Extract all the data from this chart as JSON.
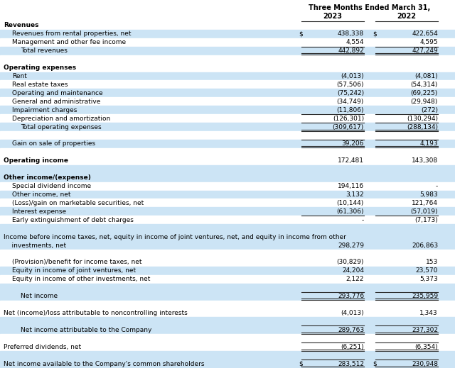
{
  "title": "Three Months Ended March 31,",
  "col_2023": "2023",
  "col_2022": "2022",
  "light_blue": "#cce4f5",
  "white": "#ffffff",
  "dark_border": "#2c2c2c",
  "rows": [
    {
      "label": "Revenues",
      "val2023": "",
      "val2022": "",
      "indent": 0,
      "bold": true,
      "section_bg": "white",
      "dollar2023": false,
      "dollar2022": false
    },
    {
      "label": "Revenues from rental properties, net",
      "val2023": "438,338",
      "val2022": "422,654",
      "indent": 1,
      "bold": false,
      "section_bg": "light",
      "dollar2023": true,
      "dollar2022": true
    },
    {
      "label": "Management and other fee income",
      "val2023": "4,554",
      "val2022": "4,595",
      "indent": 1,
      "bold": false,
      "section_bg": "white",
      "dollar2023": false,
      "dollar2022": false
    },
    {
      "label": "Total revenues",
      "val2023": "442,892",
      "val2022": "427,249",
      "indent": 2,
      "bold": false,
      "section_bg": "light",
      "dollar2023": false,
      "dollar2022": false,
      "top_border": true,
      "double_border": true
    },
    {
      "label": "",
      "val2023": "",
      "val2022": "",
      "indent": 0,
      "bold": false,
      "section_bg": "white",
      "dollar2023": false,
      "dollar2022": false
    },
    {
      "label": "Operating expenses",
      "val2023": "",
      "val2022": "",
      "indent": 0,
      "bold": true,
      "section_bg": "white",
      "dollar2023": false,
      "dollar2022": false
    },
    {
      "label": "Rent",
      "val2023": "(4,013)",
      "val2022": "(4,081)",
      "indent": 1,
      "bold": false,
      "section_bg": "light",
      "dollar2023": false,
      "dollar2022": false
    },
    {
      "label": "Real estate taxes",
      "val2023": "(57,506)",
      "val2022": "(54,314)",
      "indent": 1,
      "bold": false,
      "section_bg": "white",
      "dollar2023": false,
      "dollar2022": false
    },
    {
      "label": "Operating and maintenance",
      "val2023": "(75,242)",
      "val2022": "(69,225)",
      "indent": 1,
      "bold": false,
      "section_bg": "light",
      "dollar2023": false,
      "dollar2022": false
    },
    {
      "label": "General and administrative",
      "val2023": "(34,749)",
      "val2022": "(29,948)",
      "indent": 1,
      "bold": false,
      "section_bg": "white",
      "dollar2023": false,
      "dollar2022": false
    },
    {
      "label": "Impairment charges",
      "val2023": "(11,806)",
      "val2022": "(272)",
      "indent": 1,
      "bold": false,
      "section_bg": "light",
      "dollar2023": false,
      "dollar2022": false
    },
    {
      "label": "Depreciation and amortization",
      "val2023": "(126,301)",
      "val2022": "(130,294)",
      "indent": 1,
      "bold": false,
      "section_bg": "white",
      "dollar2023": false,
      "dollar2022": false,
      "top_border": true
    },
    {
      "label": "Total operating expenses",
      "val2023": "(309,617)",
      "val2022": "(288,134)",
      "indent": 2,
      "bold": false,
      "section_bg": "light",
      "dollar2023": false,
      "dollar2022": false,
      "top_border": true,
      "double_border": true
    },
    {
      "label": "",
      "val2023": "",
      "val2022": "",
      "indent": 0,
      "bold": false,
      "section_bg": "white",
      "dollar2023": false,
      "dollar2022": false
    },
    {
      "label": "Gain on sale of properties",
      "val2023": "39,206",
      "val2022": "4,193",
      "indent": 1,
      "bold": false,
      "section_bg": "light",
      "dollar2023": false,
      "dollar2022": false,
      "top_border": true,
      "double_border": true
    },
    {
      "label": "",
      "val2023": "",
      "val2022": "",
      "indent": 0,
      "bold": false,
      "section_bg": "white",
      "dollar2023": false,
      "dollar2022": false
    },
    {
      "label": "Operating income",
      "val2023": "172,481",
      "val2022": "143,308",
      "indent": 0,
      "bold": true,
      "section_bg": "white",
      "dollar2023": false,
      "dollar2022": false
    },
    {
      "label": "",
      "val2023": "",
      "val2022": "",
      "indent": 0,
      "bold": false,
      "section_bg": "light",
      "dollar2023": false,
      "dollar2022": false
    },
    {
      "label": "Other income/(expense)",
      "val2023": "",
      "val2022": "",
      "indent": 0,
      "bold": true,
      "section_bg": "light",
      "dollar2023": false,
      "dollar2022": false
    },
    {
      "label": "Special dividend income",
      "val2023": "194,116",
      "val2022": "-",
      "indent": 1,
      "bold": false,
      "section_bg": "white",
      "dollar2023": false,
      "dollar2022": false
    },
    {
      "label": "Other income, net",
      "val2023": "3,132",
      "val2022": "5,983",
      "indent": 1,
      "bold": false,
      "section_bg": "light",
      "dollar2023": false,
      "dollar2022": false
    },
    {
      "label": "(Loss)/gain on marketable securities, net",
      "val2023": "(10,144)",
      "val2022": "121,764",
      "indent": 1,
      "bold": false,
      "section_bg": "white",
      "dollar2023": false,
      "dollar2022": false
    },
    {
      "label": "Interest expense",
      "val2023": "(61,306)",
      "val2022": "(57,019)",
      "indent": 1,
      "bold": false,
      "section_bg": "light",
      "dollar2023": false,
      "dollar2022": false
    },
    {
      "label": "Early extinguishment of debt charges",
      "val2023": "-",
      "val2022": "(7,173)",
      "indent": 1,
      "bold": false,
      "section_bg": "white",
      "dollar2023": false,
      "dollar2022": false,
      "top_border": true
    },
    {
      "label": "",
      "val2023": "",
      "val2022": "",
      "indent": 0,
      "bold": false,
      "section_bg": "light",
      "dollar2023": false,
      "dollar2022": false
    },
    {
      "label": "Income before income taxes, net, equity in income of joint ventures, net, and equity in income from other",
      "val2023": "",
      "val2022": "",
      "indent": 0,
      "bold": false,
      "section_bg": "light",
      "dollar2023": false,
      "dollar2022": false,
      "line1": true
    },
    {
      "label": "    investments, net",
      "val2023": "298,279",
      "val2022": "206,863",
      "indent": 0,
      "bold": false,
      "section_bg": "light",
      "dollar2023": false,
      "dollar2022": false,
      "line2": true
    },
    {
      "label": "",
      "val2023": "",
      "val2022": "",
      "indent": 0,
      "bold": false,
      "section_bg": "white",
      "dollar2023": false,
      "dollar2022": false
    },
    {
      "label": "(Provision)/benefit for income taxes, net",
      "val2023": "(30,829)",
      "val2022": "153",
      "indent": 1,
      "bold": false,
      "section_bg": "white",
      "dollar2023": false,
      "dollar2022": false
    },
    {
      "label": "Equity in income of joint ventures, net",
      "val2023": "24,204",
      "val2022": "23,570",
      "indent": 1,
      "bold": false,
      "section_bg": "light",
      "dollar2023": false,
      "dollar2022": false
    },
    {
      "label": "Equity in income of other investments, net",
      "val2023": "2,122",
      "val2022": "5,373",
      "indent": 1,
      "bold": false,
      "section_bg": "white",
      "dollar2023": false,
      "dollar2022": false
    },
    {
      "label": "",
      "val2023": "",
      "val2022": "",
      "indent": 0,
      "bold": false,
      "section_bg": "light",
      "dollar2023": false,
      "dollar2022": false
    },
    {
      "label": "Net income",
      "val2023": "293,776",
      "val2022": "235,959",
      "indent": 2,
      "bold": false,
      "section_bg": "light",
      "dollar2023": false,
      "dollar2022": false,
      "top_border": true,
      "double_border": true
    },
    {
      "label": "",
      "val2023": "",
      "val2022": "",
      "indent": 0,
      "bold": false,
      "section_bg": "white",
      "dollar2023": false,
      "dollar2022": false
    },
    {
      "label": "Net (income)/loss attributable to noncontrolling interests",
      "val2023": "(4,013)",
      "val2022": "1,343",
      "indent": 0,
      "bold": false,
      "section_bg": "white",
      "dollar2023": false,
      "dollar2022": false
    },
    {
      "label": "",
      "val2023": "",
      "val2022": "",
      "indent": 0,
      "bold": false,
      "section_bg": "light",
      "dollar2023": false,
      "dollar2022": false
    },
    {
      "label": "Net income attributable to the Company",
      "val2023": "289,763",
      "val2022": "237,302",
      "indent": 2,
      "bold": false,
      "section_bg": "light",
      "dollar2023": false,
      "dollar2022": false,
      "top_border": true,
      "double_border": true
    },
    {
      "label": "",
      "val2023": "",
      "val2022": "",
      "indent": 0,
      "bold": false,
      "section_bg": "white",
      "dollar2023": false,
      "dollar2022": false
    },
    {
      "label": "Preferred dividends, net",
      "val2023": "(6,251)",
      "val2022": "(6,354)",
      "indent": 0,
      "bold": false,
      "section_bg": "white",
      "dollar2023": false,
      "dollar2022": false,
      "top_border": true,
      "double_border": true
    },
    {
      "label": "",
      "val2023": "",
      "val2022": "",
      "indent": 0,
      "bold": false,
      "section_bg": "light",
      "dollar2023": false,
      "dollar2022": false
    },
    {
      "label": "Net income available to the Company's common shareholders",
      "val2023": "283,512",
      "val2022": "230,948",
      "indent": 0,
      "bold": false,
      "section_bg": "light",
      "dollar2023": true,
      "dollar2022": true,
      "top_border": true,
      "double_border": true
    }
  ]
}
